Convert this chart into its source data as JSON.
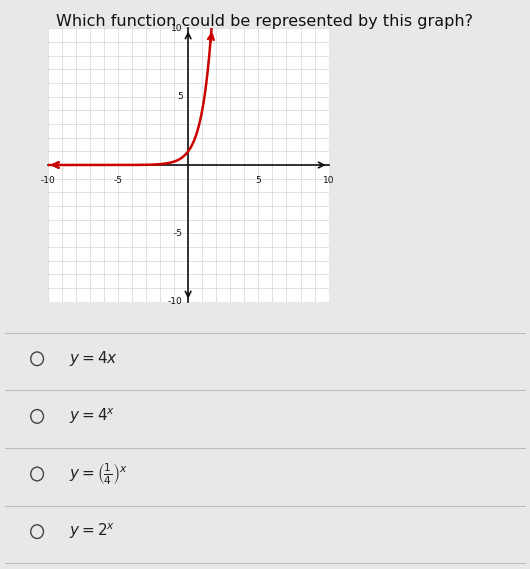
{
  "title": "Which function could be represented by this graph?",
  "title_fontsize": 11.5,
  "background_color": "#e8e8e8",
  "graph_bg_color": "#ffffff",
  "xlim": [
    -10,
    10
  ],
  "ylim": [
    -10,
    10
  ],
  "xticks": [
    -10,
    -5,
    0,
    5,
    10
  ],
  "yticks": [
    -10,
    -5,
    0,
    5,
    10
  ],
  "grid_color": "#aaaaaa",
  "axis_color": "#111111",
  "curve_color": "#cc0000",
  "option_fontsize": 11,
  "radio_color": "#444444",
  "options_latex": [
    "$y = 4x$",
    "$y = 4^{x}$",
    "$y = \\left(\\frac{1}{4}\\right)^{x}$",
    "$y = 2^{x}$"
  ]
}
